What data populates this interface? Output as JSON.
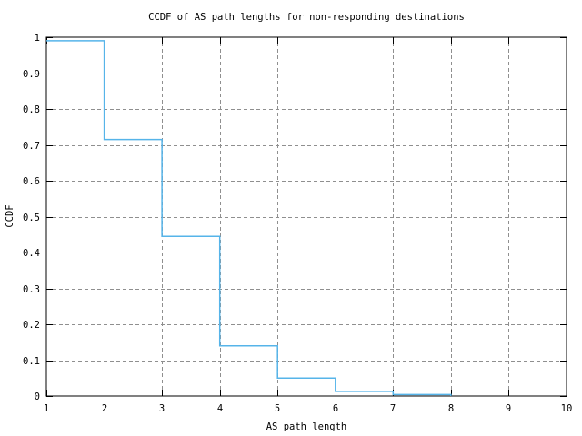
{
  "window": {
    "background": "#ffffff"
  },
  "chart_data": {
    "type": "line",
    "variant": "ccdf-step-function",
    "title": "CCDF of AS path lengths for non-responding destinations",
    "xlabel": "AS path length",
    "ylabel": "CCDF",
    "xlim": [
      1,
      10
    ],
    "ylim": [
      0,
      1
    ],
    "xticks": [
      1,
      2,
      3,
      4,
      5,
      6,
      7,
      8,
      9,
      10
    ],
    "xtick_labels": [
      "1",
      "2",
      "3",
      "4",
      "5",
      "6",
      "7",
      "8",
      "9",
      "10"
    ],
    "yticks": [
      0,
      0.1,
      0.2,
      0.3,
      0.4,
      0.5,
      0.6,
      0.7,
      0.8,
      0.9,
      1
    ],
    "ytick_labels": [
      "0",
      "0.1",
      "0.2",
      "0.3",
      "0.4",
      "0.5",
      "0.6",
      "0.7",
      "0.8",
      "0.9",
      "1"
    ],
    "grid": true,
    "grid_style": "dashed",
    "legend_position": "none",
    "colors": {
      "line": "#56b4e9",
      "grid": "#8f8f8f",
      "frame": "#000000",
      "background": "#ffffff"
    },
    "series": [
      {
        "name": "CCDF",
        "step_edges": [
          1,
          2,
          3,
          4,
          5,
          6,
          7,
          8
        ],
        "step_values": [
          0.99,
          0.715,
          0.445,
          0.14,
          0.05,
          0.013,
          0.004
        ],
        "end_value": 0
      }
    ]
  }
}
